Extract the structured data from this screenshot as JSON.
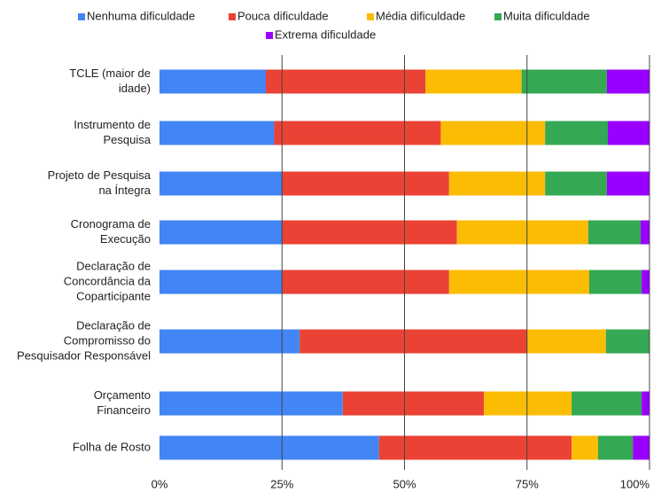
{
  "chart_data": {
    "type": "stacked_bar_horizontal",
    "categories": [
      [
        "TCLE (maior de",
        "idade)"
      ],
      [
        "Instrumento de",
        "Pesquisa"
      ],
      [
        "Projeto de Pesquisa",
        "na Íntegra"
      ],
      [
        "Cronograma de",
        "Execução"
      ],
      [
        "Declaração de",
        "Concordância da",
        "Coparticipante"
      ],
      [
        "Declaração de",
        "Compromisso do",
        "Pesquisador Responsável"
      ],
      [
        "Orçamento",
        "Financeiro"
      ],
      [
        "Folha de Rosto"
      ]
    ],
    "series": [
      {
        "name": "Nenhuma dificuldade",
        "color": "#4285f4",
        "values": [
          21.7,
          23.4,
          25,
          25,
          25,
          28.6,
          37.4,
          44.8
        ]
      },
      {
        "name": "Pouca dificuldade",
        "color": "#ea4335",
        "values": [
          32.6,
          34.0,
          34.1,
          35.7,
          34.1,
          46.4,
          28.8,
          39.3
        ]
      },
      {
        "name": "Média dificuldade",
        "color": "#fbbc04",
        "values": [
          19.6,
          21.3,
          19.6,
          26.8,
          28.6,
          16.1,
          17.9,
          5.4
        ]
      },
      {
        "name": "Muita dificuldade",
        "color": "#34a853",
        "values": [
          17.4,
          12.8,
          12.6,
          10.7,
          10.7,
          8.9,
          14.3,
          7.1
        ]
      },
      {
        "name": "Extrema dificuldade",
        "color": "#9900ff",
        "values": [
          8.7,
          8.5,
          8.7,
          1.8,
          1.6,
          0,
          1.6,
          3.4
        ]
      }
    ],
    "xlim": [
      0,
      100
    ],
    "xticks": [
      {
        "value": 0,
        "label": "0%"
      },
      {
        "value": 25,
        "label": "25%"
      },
      {
        "value": 50,
        "label": "50%"
      },
      {
        "value": 75,
        "label": "75%"
      },
      {
        "value": 100,
        "label": "100%"
      }
    ],
    "grid": true,
    "legend": "top"
  }
}
